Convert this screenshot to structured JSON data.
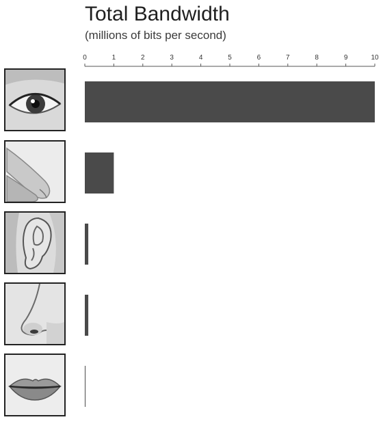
{
  "chart_data": {
    "type": "bar",
    "orientation": "horizontal",
    "title": "Total Bandwidth",
    "subtitle": "(millions of bits per second)",
    "xlim": [
      0,
      10
    ],
    "ticks": [
      "0",
      "1",
      "2",
      "3",
      "4",
      "5",
      "6",
      "7",
      "8",
      "9",
      "10"
    ],
    "categories": [
      "eye",
      "finger",
      "ear",
      "nose",
      "lips"
    ],
    "values": [
      10,
      1,
      0.12,
      0.12,
      0.01
    ],
    "bar_color": "#4a4a4a",
    "grid": false
  },
  "icons": [
    "eye-image",
    "finger-touch-image",
    "ear-image",
    "nose-image",
    "lips-image"
  ]
}
